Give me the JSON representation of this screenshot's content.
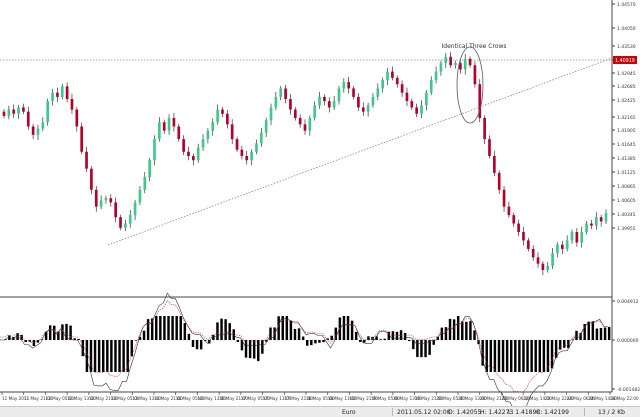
{
  "chart_data": [
    {
      "type": "candlestick",
      "annotation": "Identical Three Crows",
      "current_price": "1.40919",
      "up_color": "#3cc98a",
      "down_color": "#b3002a",
      "y_ticks": [
        "1.44570",
        "1.44050",
        "1.43530",
        "1.43270",
        "1.42945",
        "1.42685",
        "1.42425",
        "1.42165",
        "1.41905",
        "1.41645",
        "1.41385",
        "1.41125",
        "1.40865",
        "1.40605",
        "1.40345",
        "1.39955"
      ],
      "x_labels": [
        "11 May 2011",
        "11 May 21:00",
        "12 May 05:00",
        "12 May 13:00",
        "12 May 21:00",
        "13 May 05:00",
        "13 May 13:00",
        "13 May 21:00",
        "16 May 05:00",
        "16 May 13:00",
        "16 May 21:00",
        "17 May 05:00",
        "17 May 13:00",
        "17 May 21:00",
        "18 May 05:00",
        "18 May 13:00",
        "18 May 21:00",
        "19 May 05:00",
        "19 May 13:00",
        "19 May 21:00",
        "20 May 05:00",
        "20 May 13:00",
        "20 May 21:00",
        "23 May 06:00",
        "23 May 14:00",
        "23 May 22:00",
        "24 May 06:00",
        "24 May 14:00",
        "24 May 22:00"
      ],
      "series": [
        {
          "close_levels": [
            1.4205,
            1.422,
            1.421,
            1.4225,
            1.4215,
            1.418,
            1.416,
            1.4175,
            1.419,
            1.424,
            1.426,
            1.425,
            1.4275,
            1.4245,
            1.422,
            1.418,
            1.412,
            1.408,
            1.403,
            1.399,
            1.4005,
            1.401,
            1.4,
            1.3965,
            1.394,
            1.395,
            1.397,
            1.4,
            1.403,
            1.406,
            1.41,
            1.415,
            1.419,
            1.417,
            1.42,
            1.418,
            1.415,
            1.412,
            1.411,
            1.41,
            1.413,
            1.415,
            1.417,
            1.419,
            1.422,
            1.421,
            1.4185,
            1.415,
            1.4125,
            1.411,
            1.41,
            1.412,
            1.414,
            1.4165,
            1.4195,
            1.4225,
            1.425,
            1.427,
            1.4245,
            1.422,
            1.42,
            1.4185,
            1.417,
            1.42,
            1.423,
            1.425,
            1.424,
            1.4225,
            1.424,
            1.427,
            1.4285,
            1.427,
            1.425,
            1.4225,
            1.4215,
            1.423,
            1.425,
            1.427,
            1.429,
            1.431,
            1.4295,
            1.428,
            1.426,
            1.424,
            1.4225,
            1.421,
            1.423,
            1.426,
            1.429,
            1.431,
            1.433,
            1.4345,
            1.4325,
            1.433,
            1.4315,
            1.434,
            1.4325,
            1.428,
            1.42,
            1.415,
            1.411,
            1.407,
            1.403,
            1.399,
            1.397,
            1.395,
            1.393,
            1.391,
            1.389,
            1.387,
            1.3855,
            1.384,
            1.385,
            1.388,
            1.39,
            1.389,
            1.391,
            1.393,
            1.3905,
            1.393,
            1.395,
            1.3945,
            1.3965,
            1.3955,
            1.3975
          ]
        }
      ]
    },
    {
      "type": "bar",
      "indicator": "histogram",
      "y_ticks": [
        "0.004912",
        "0.000000",
        "-0.001482"
      ],
      "series": [
        {
          "name": "",
          "values": []
        }
      ]
    }
  ],
  "status": {
    "symbol": "Euro",
    "datetime": "2011.05.12 02:00",
    "open": "O: 1.42055",
    "high": "H: 1.42273",
    "low": "L: 1.41898",
    "close": "C: 1.42199",
    "bars": "13 / 2 Kb"
  }
}
